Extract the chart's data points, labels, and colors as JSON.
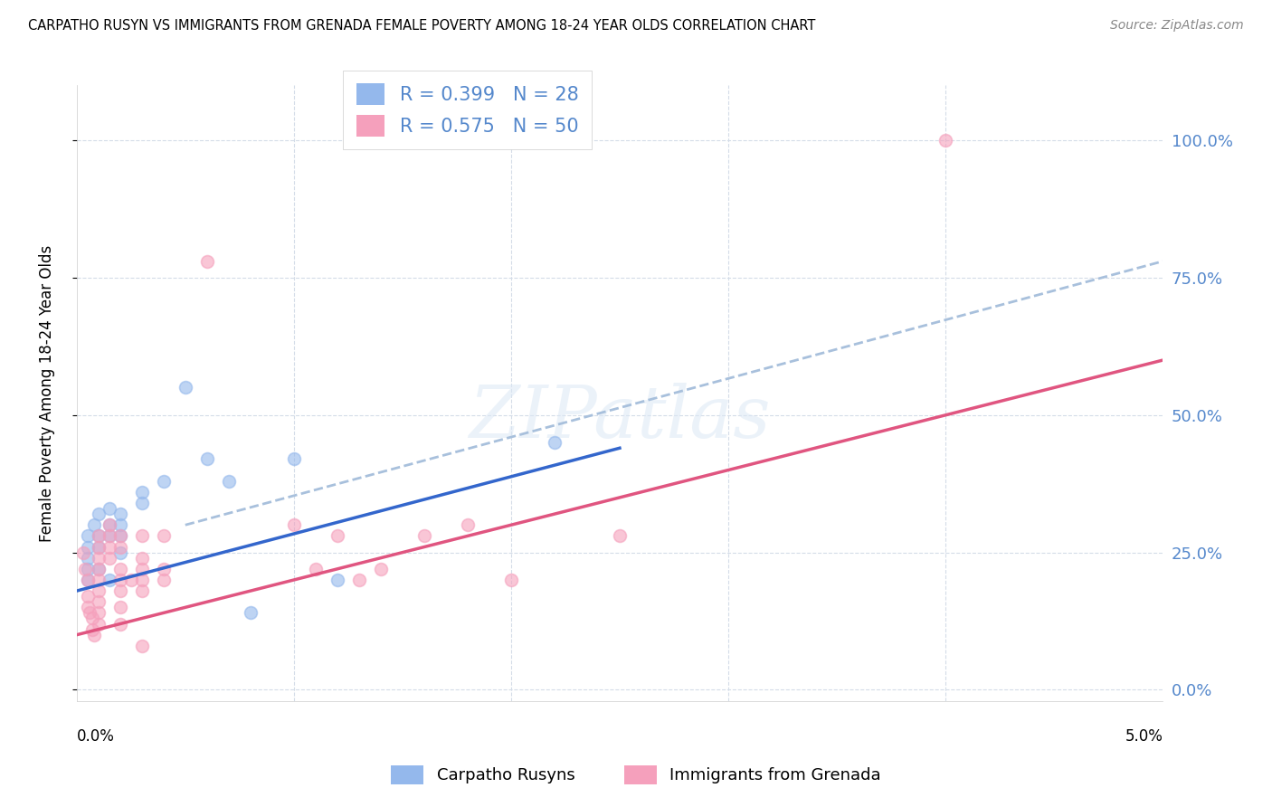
{
  "title": "CARPATHO RUSYN VS IMMIGRANTS FROM GRENADA FEMALE POVERTY AMONG 18-24 YEAR OLDS CORRELATION CHART",
  "source": "Source: ZipAtlas.com",
  "ylabel": "Female Poverty Among 18-24 Year Olds",
  "watermark": "ZIPatlas",
  "blue_label": "Carpatho Rusyns",
  "pink_label": "Immigrants from Grenada",
  "blue_R": 0.399,
  "blue_N": 28,
  "pink_R": 0.575,
  "pink_N": 50,
  "blue_color": "#94b8ec",
  "pink_color": "#f5a0bc",
  "blue_line_color": "#3366cc",
  "pink_line_color": "#e05580",
  "dashed_line_color": "#a8c0dc",
  "right_axis_color": "#5588cc",
  "background_color": "#ffffff",
  "grid_color": "#d4dce8",
  "blue_scatter": [
    [
      0.0005,
      0.28
    ],
    [
      0.0005,
      0.26
    ],
    [
      0.0005,
      0.24
    ],
    [
      0.0005,
      0.22
    ],
    [
      0.0005,
      0.2
    ],
    [
      0.0008,
      0.3
    ],
    [
      0.001,
      0.32
    ],
    [
      0.001,
      0.28
    ],
    [
      0.001,
      0.26
    ],
    [
      0.001,
      0.22
    ],
    [
      0.0015,
      0.33
    ],
    [
      0.0015,
      0.3
    ],
    [
      0.0015,
      0.28
    ],
    [
      0.0015,
      0.2
    ],
    [
      0.002,
      0.32
    ],
    [
      0.002,
      0.3
    ],
    [
      0.002,
      0.28
    ],
    [
      0.002,
      0.25
    ],
    [
      0.003,
      0.36
    ],
    [
      0.003,
      0.34
    ],
    [
      0.004,
      0.38
    ],
    [
      0.005,
      0.55
    ],
    [
      0.006,
      0.42
    ],
    [
      0.007,
      0.38
    ],
    [
      0.008,
      0.14
    ],
    [
      0.01,
      0.42
    ],
    [
      0.012,
      0.2
    ],
    [
      0.022,
      0.45
    ]
  ],
  "pink_scatter": [
    [
      0.0003,
      0.25
    ],
    [
      0.0004,
      0.22
    ],
    [
      0.0005,
      0.2
    ],
    [
      0.0005,
      0.17
    ],
    [
      0.0005,
      0.15
    ],
    [
      0.0006,
      0.14
    ],
    [
      0.0007,
      0.13
    ],
    [
      0.0007,
      0.11
    ],
    [
      0.0008,
      0.1
    ],
    [
      0.001,
      0.28
    ],
    [
      0.001,
      0.26
    ],
    [
      0.001,
      0.24
    ],
    [
      0.001,
      0.22
    ],
    [
      0.001,
      0.2
    ],
    [
      0.001,
      0.18
    ],
    [
      0.001,
      0.16
    ],
    [
      0.001,
      0.14
    ],
    [
      0.001,
      0.12
    ],
    [
      0.0015,
      0.3
    ],
    [
      0.0015,
      0.28
    ],
    [
      0.0015,
      0.26
    ],
    [
      0.0015,
      0.24
    ],
    [
      0.002,
      0.28
    ],
    [
      0.002,
      0.26
    ],
    [
      0.002,
      0.22
    ],
    [
      0.002,
      0.2
    ],
    [
      0.002,
      0.18
    ],
    [
      0.002,
      0.15
    ],
    [
      0.002,
      0.12
    ],
    [
      0.0025,
      0.2
    ],
    [
      0.003,
      0.28
    ],
    [
      0.003,
      0.24
    ],
    [
      0.003,
      0.22
    ],
    [
      0.003,
      0.2
    ],
    [
      0.003,
      0.18
    ],
    [
      0.003,
      0.08
    ],
    [
      0.004,
      0.28
    ],
    [
      0.004,
      0.22
    ],
    [
      0.004,
      0.2
    ],
    [
      0.006,
      0.78
    ],
    [
      0.01,
      0.3
    ],
    [
      0.011,
      0.22
    ],
    [
      0.012,
      0.28
    ],
    [
      0.013,
      0.2
    ],
    [
      0.014,
      0.22
    ],
    [
      0.016,
      0.28
    ],
    [
      0.018,
      0.3
    ],
    [
      0.02,
      0.2
    ],
    [
      0.025,
      0.28
    ],
    [
      0.04,
      1.0
    ]
  ],
  "xlim": [
    0.0,
    0.05
  ],
  "ylim": [
    -0.02,
    1.1
  ],
  "right_yticks": [
    0.0,
    0.25,
    0.5,
    0.75,
    1.0
  ],
  "right_yticklabels": [
    "0.0%",
    "25.0%",
    "50.0%",
    "75.0%",
    "100.0%"
  ],
  "blue_line_x": [
    0.0,
    0.025
  ],
  "blue_line_y": [
    0.18,
    0.44
  ],
  "pink_line_x": [
    0.0,
    0.05
  ],
  "pink_line_y": [
    0.1,
    0.6
  ],
  "dash_line_x": [
    0.005,
    0.05
  ],
  "dash_line_y": [
    0.3,
    0.78
  ],
  "marker_size": 100
}
